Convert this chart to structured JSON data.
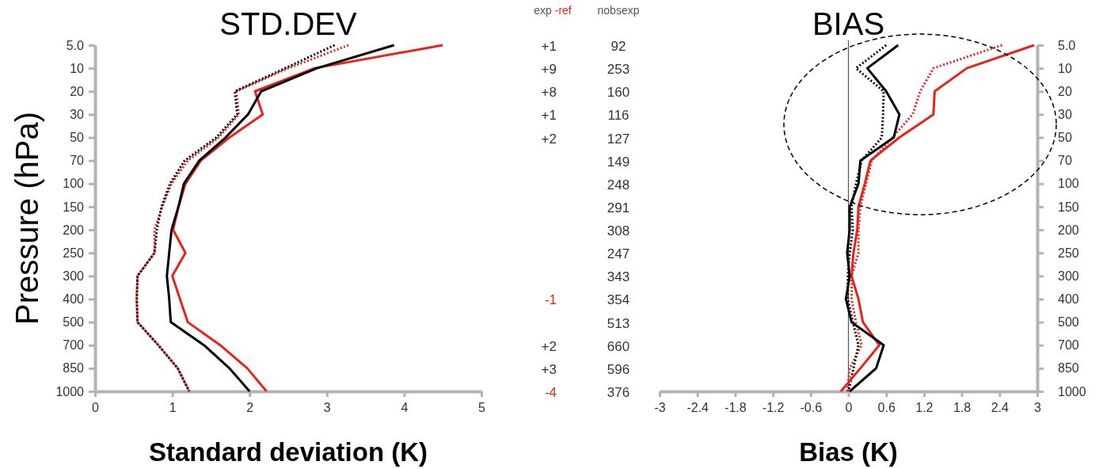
{
  "chart_data": [
    {
      "type": "line",
      "orientation": "horizontal",
      "title": "STD.DEV",
      "xlabel": "Standard deviation (K)",
      "ylabel": "Pressure (hPa)",
      "categories": [
        "5.0",
        "10",
        "20",
        "30",
        "50",
        "70",
        "100",
        "150",
        "200",
        "250",
        "300",
        "400",
        "500",
        "700",
        "850",
        "1000"
      ],
      "xlim": [
        0,
        5
      ],
      "xticks": [
        0,
        1,
        2,
        3,
        4,
        5
      ],
      "series": [
        {
          "color": "#e8231c",
          "line_style": "dotted",
          "values": [
            3.28,
            2.5,
            1.83,
            1.86,
            1.6,
            1.2,
            0.99,
            0.87,
            0.77,
            0.77,
            0.55,
            0.54,
            0.55,
            0.82,
            1.07,
            1.22
          ]
        },
        {
          "color": "#000000",
          "line_style": "dotted",
          "values": [
            3.1,
            2.46,
            1.81,
            1.84,
            1.57,
            1.16,
            0.97,
            0.86,
            0.8,
            0.77,
            0.55,
            0.54,
            0.55,
            0.82,
            1.07,
            1.22
          ]
        },
        {
          "color": "#e8231c",
          "line_style": "solid",
          "values": [
            4.5,
            2.84,
            2.07,
            2.17,
            1.74,
            1.37,
            1.17,
            1.08,
            1.01,
            1.17,
            1.0,
            1.1,
            1.2,
            1.62,
            1.97,
            2.22
          ]
        },
        {
          "color": "#000000",
          "line_style": "solid",
          "values": [
            3.87,
            2.87,
            2.15,
            1.98,
            1.69,
            1.35,
            1.15,
            1.08,
            0.99,
            0.96,
            0.93,
            0.96,
            0.98,
            1.41,
            1.74,
            2.0
          ]
        }
      ]
    },
    {
      "type": "other",
      "categories": [
        "exp -ref",
        "nobsexp"
      ],
      "cell_labels": [
        [
          "+1",
          "92"
        ],
        [
          "+9",
          "253"
        ],
        [
          "+8",
          "160"
        ],
        [
          "+1",
          "116"
        ],
        [
          "+2",
          "127"
        ],
        [
          null,
          "149"
        ],
        [
          null,
          "248"
        ],
        [
          null,
          "291"
        ],
        [
          null,
          "308"
        ],
        [
          null,
          "247"
        ],
        [
          null,
          "343"
        ],
        [
          "-1",
          "354"
        ],
        [
          null,
          "513"
        ],
        [
          "+2",
          "660"
        ],
        [
          "+3",
          "596"
        ],
        [
          "-4",
          "376"
        ]
      ]
    },
    {
      "type": "line",
      "orientation": "horizontal",
      "title": "BIAS",
      "xlabel": "Bias (K)",
      "categories": [
        "5.0",
        "10",
        "20",
        "30",
        "50",
        "70",
        "100",
        "150",
        "200",
        "250",
        "300",
        "400",
        "500",
        "700",
        "850",
        "1000"
      ],
      "xlim": [
        -3,
        3
      ],
      "xticks": [
        -3,
        -2.4,
        -1.8,
        -1.2,
        -0.6,
        0,
        0.6,
        1.2,
        1.8,
        2.4,
        3
      ],
      "ref_lines": [
        {
          "axis": "x",
          "value": 0,
          "color": "#555555"
        }
      ],
      "series": [
        {
          "color": "#e8231c",
          "line_style": "dotted",
          "values": [
            2.44,
            1.35,
            1.14,
            1.02,
            0.7,
            0.37,
            0.28,
            0.19,
            0.16,
            0.16,
            0.05,
            0.05,
            0.12,
            0.21,
            0.02,
            -0.02
          ]
        },
        {
          "color": "#000000",
          "line_style": "dotted",
          "values": [
            0.6,
            0.12,
            0.56,
            0.55,
            0.53,
            0.21,
            0.12,
            0.05,
            0.07,
            0.02,
            -0.01,
            -0.01,
            0.07,
            0.16,
            0.08,
            0
          ]
        },
        {
          "color": "#e8231c",
          "line_style": "solid",
          "values": [
            2.95,
            1.88,
            1.37,
            1.35,
            0.81,
            0.35,
            0.26,
            0.16,
            0.14,
            0.08,
            0.05,
            0.16,
            0.23,
            0.49,
            0.19,
            -0.12
          ]
        },
        {
          "color": "#000000",
          "line_style": "solid",
          "values": [
            0.79,
            0.3,
            0.6,
            0.81,
            0.72,
            0.19,
            0.16,
            0.02,
            0.02,
            -0.02,
            0.02,
            -0.04,
            0.05,
            0.56,
            0.44,
            0.02
          ]
        }
      ]
    }
  ]
}
